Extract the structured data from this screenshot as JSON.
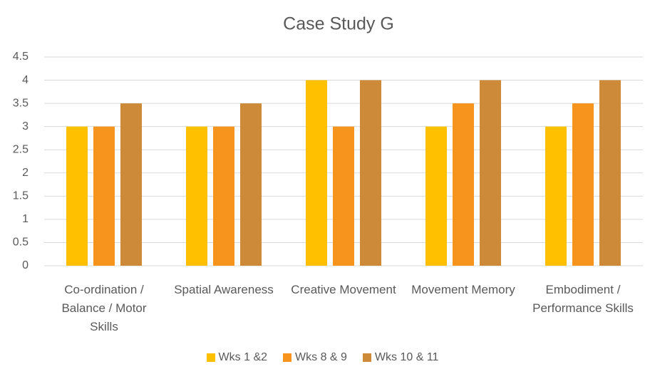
{
  "chart_data": {
    "type": "bar",
    "title": "Case Study G",
    "categories": [
      "Co-ordination / Balance / Motor Skills",
      "Spatial Awareness",
      "Creative Movement",
      "Movement Memory",
      "Embodiment / Performance Skills"
    ],
    "series": [
      {
        "name": "Wks 1 &2",
        "color": "#ffc000",
        "values": [
          3,
          3,
          4,
          3,
          3
        ]
      },
      {
        "name": "Wks 8 & 9",
        "color": "#f7941d",
        "values": [
          3,
          3,
          3,
          3.5,
          3.5
        ]
      },
      {
        "name": "Wks 10 & 11",
        "color": "#cd8b3a",
        "values": [
          3.5,
          3.5,
          4,
          4,
          4
        ]
      }
    ],
    "ylim": [
      0,
      4.5
    ],
    "yticks": [
      0,
      0.5,
      1,
      1.5,
      2,
      2.5,
      3,
      3.5,
      4,
      4.5
    ],
    "grid": true,
    "legend": "bottom"
  }
}
